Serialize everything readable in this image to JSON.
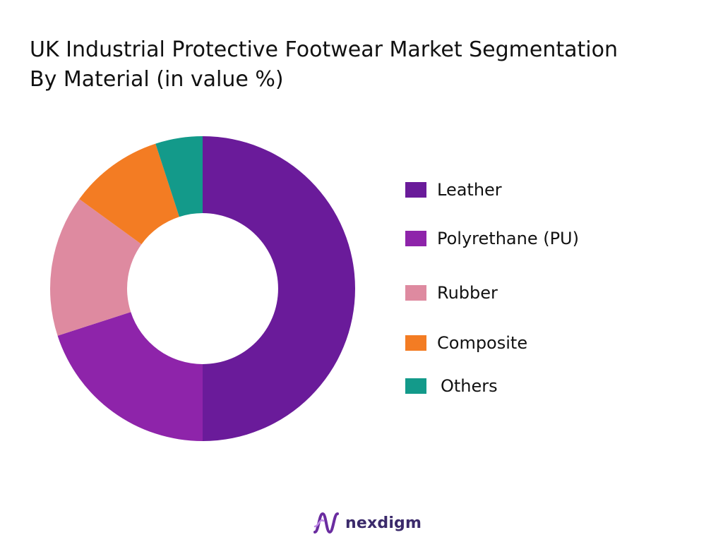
{
  "title_line1": "UK Industrial Protective Footwear Market Segmentation",
  "title_line2": "By Material (in value %)",
  "brand": {
    "name": "nexdigm",
    "logo_icon": "nexdigm-wave-logo-icon"
  },
  "chart_data": {
    "type": "pie",
    "variant": "donut",
    "title": "UK Industrial Protective Footwear Market Segmentation By Material (in value %)",
    "legend_position": "right",
    "categories": [
      "Leather",
      "Polyrethane (PU)",
      "Rubber",
      "Composite",
      "Others"
    ],
    "values": [
      50,
      20,
      15,
      10,
      5
    ],
    "colors": [
      "#6a1b9a",
      "#8e24aa",
      "#de8aa0",
      "#f37c23",
      "#139a8a"
    ]
  }
}
